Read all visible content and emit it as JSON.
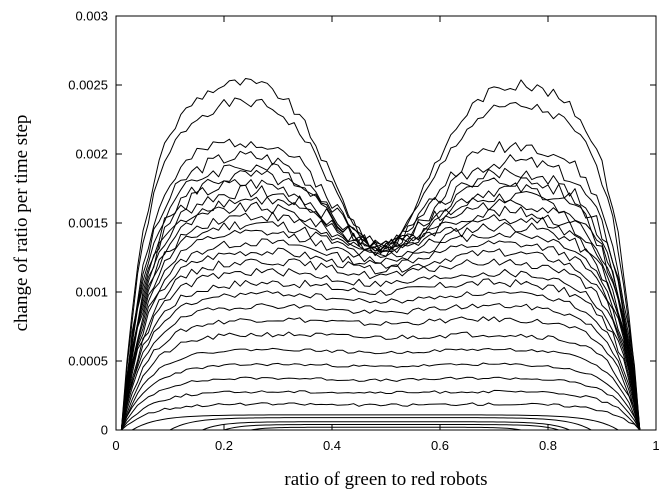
{
  "chart_data": {
    "type": "line",
    "title": "",
    "xlabel": "ratio of green to red robots",
    "ylabel": "change of ratio per time step",
    "xlim": [
      0,
      1
    ],
    "ylim": [
      0,
      0.003
    ],
    "xticks": [
      0,
      0.2,
      0.4,
      0.6,
      0.8,
      1
    ],
    "xtick_labels": [
      "0",
      "0.2",
      "0.4",
      "0.6",
      "0.8",
      "1"
    ],
    "yticks": [
      0,
      0.0005,
      0.001,
      0.0015,
      0.002,
      0.0025,
      0.003
    ],
    "ytick_labels": [
      "0",
      "0.0005",
      "0.001",
      "0.0015",
      "0.002",
      "0.0025",
      "0.003"
    ],
    "grid": false,
    "legend": "none",
    "line_color": "#000000",
    "series_shape": "curves rise steeply from near zero at both ends; upper curves have two humps near x=0.2 and x=0.8 with a dip at x=0.5, lower curves are flat plateaus",
    "series": [
      {
        "x0": 0.01,
        "x1": 0.97,
        "left_peak": 0.00258,
        "right_peak": 0.00256,
        "center": 0.00134,
        "noise": 4e-05
      },
      {
        "x0": 0.01,
        "x1": 0.97,
        "left_peak": 0.00243,
        "right_peak": 0.0024,
        "center": 0.00134,
        "noise": 4e-05
      },
      {
        "x0": 0.01,
        "x1": 0.97,
        "left_peak": 0.00214,
        "right_peak": 0.00211,
        "center": 0.00134,
        "noise": 5e-05
      },
      {
        "x0": 0.01,
        "x1": 0.97,
        "left_peak": 0.00203,
        "right_peak": 0.00199,
        "center": 0.00134,
        "noise": 5e-05
      },
      {
        "x0": 0.01,
        "x1": 0.97,
        "left_peak": 0.00195,
        "right_peak": 0.0019,
        "center": 0.00134,
        "noise": 5e-05
      },
      {
        "x0": 0.01,
        "x1": 0.97,
        "left_peak": 0.00188,
        "right_peak": 0.00184,
        "center": 0.00133,
        "noise": 5e-05
      },
      {
        "x0": 0.01,
        "x1": 0.97,
        "left_peak": 0.00182,
        "right_peak": 0.00178,
        "center": 0.00133,
        "noise": 5e-05
      },
      {
        "x0": 0.01,
        "x1": 0.97,
        "left_peak": 0.00176,
        "right_peak": 0.00172,
        "center": 0.00132,
        "noise": 5e-05
      },
      {
        "x0": 0.01,
        "x1": 0.97,
        "left_peak": 0.0017,
        "right_peak": 0.00167,
        "center": 0.00131,
        "noise": 4e-05
      },
      {
        "x0": 0.01,
        "x1": 0.97,
        "left_peak": 0.00164,
        "right_peak": 0.00161,
        "center": 0.0013,
        "noise": 4e-05
      },
      {
        "x0": 0.01,
        "x1": 0.97,
        "left_peak": 0.00158,
        "right_peak": 0.00156,
        "center": 0.00128,
        "noise": 4e-05
      },
      {
        "x0": 0.01,
        "x1": 0.97,
        "left_peak": 0.00152,
        "right_peak": 0.0015,
        "center": 0.00126,
        "noise": 4e-05
      },
      {
        "x0": 0.01,
        "x1": 0.97,
        "left_peak": 0.00145,
        "right_peak": 0.00144,
        "center": 0.00123,
        "noise": 3e-05
      },
      {
        "x0": 0.01,
        "x1": 0.97,
        "left_peak": 0.00138,
        "right_peak": 0.00137,
        "center": 0.0012,
        "noise": 3e-05
      },
      {
        "x0": 0.01,
        "x1": 0.97,
        "left_peak": 0.00131,
        "right_peak": 0.0013,
        "center": 0.00116,
        "noise": 3e-05
      },
      {
        "x0": 0.01,
        "x1": 0.97,
        "left_peak": 0.00124,
        "right_peak": 0.00123,
        "center": 0.00112,
        "noise": 3e-05
      },
      {
        "x0": 0.01,
        "x1": 0.97,
        "left_peak": 0.00116,
        "right_peak": 0.00115,
        "center": 0.00106,
        "noise": 3e-05
      },
      {
        "x0": 0.01,
        "x1": 0.97,
        "left_peak": 0.00108,
        "right_peak": 0.00108,
        "center": 0.001,
        "noise": 3e-05
      },
      {
        "x0": 0.01,
        "x1": 0.97,
        "left_peak": 0.001,
        "right_peak": 0.001,
        "center": 0.00093,
        "noise": 2e-05
      },
      {
        "x0": 0.01,
        "x1": 0.97,
        "left_peak": 0.00091,
        "right_peak": 0.00091,
        "center": 0.00085,
        "noise": 2e-05
      },
      {
        "x0": 0.01,
        "x1": 0.97,
        "left_peak": 0.00081,
        "right_peak": 0.00081,
        "center": 0.00077,
        "noise": 2e-05
      },
      {
        "x0": 0.01,
        "x1": 0.97,
        "left_peak": 0.0007,
        "right_peak": 0.0007,
        "center": 0.00067,
        "noise": 2e-05
      },
      {
        "x0": 0.01,
        "x1": 0.97,
        "left_peak": 0.00059,
        "right_peak": 0.00059,
        "center": 0.00056,
        "noise": 1e-05
      },
      {
        "x0": 0.01,
        "x1": 0.97,
        "left_peak": 0.00048,
        "right_peak": 0.00048,
        "center": 0.00046,
        "noise": 1e-05
      },
      {
        "x0": 0.01,
        "x1": 0.97,
        "left_peak": 0.00038,
        "right_peak": 0.00038,
        "center": 0.00036,
        "noise": 1e-05
      },
      {
        "x0": 0.01,
        "x1": 0.97,
        "left_peak": 0.00028,
        "right_peak": 0.00028,
        "center": 0.00027,
        "noise": 1e-05
      },
      {
        "x0": 0.01,
        "x1": 0.97,
        "left_peak": 0.00019,
        "right_peak": 0.00019,
        "center": 0.00018,
        "noise": 1e-05
      },
      {
        "x0": 0.03,
        "x1": 0.93,
        "left_peak": 0.00011,
        "right_peak": 0.00011,
        "center": 0.00011,
        "noise": 0.0
      },
      {
        "x0": 0.1,
        "x1": 0.88,
        "left_peak": 9e-05,
        "right_peak": 9e-05,
        "center": 9e-05,
        "noise": 0.0
      },
      {
        "x0": 0.16,
        "x1": 0.84,
        "left_peak": 6e-05,
        "right_peak": 6e-05,
        "center": 6e-05,
        "noise": 0.0
      },
      {
        "x0": 0.2,
        "x1": 0.82,
        "left_peak": 4e-05,
        "right_peak": 4e-05,
        "center": 4e-05,
        "noise": 0.0
      },
      {
        "x0": 0.25,
        "x1": 0.75,
        "left_peak": 2e-05,
        "right_peak": 2e-05,
        "center": 2e-05,
        "noise": 0.0
      }
    ]
  }
}
